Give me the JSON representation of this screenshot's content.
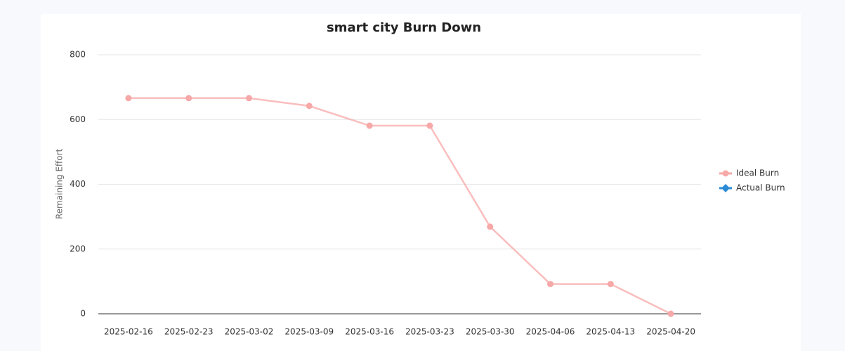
{
  "chart_data": {
    "type": "line",
    "title": "smart city Burn Down",
    "ylabel": "Remaining Effort",
    "categories": [
      "2025-02-16",
      "2025-02-23",
      "2025-03-02",
      "2025-03-09",
      "2025-03-16",
      "2025-03-23",
      "2025-03-30",
      "2025-04-06",
      "2025-04-13",
      "2025-04-20"
    ],
    "series": [
      {
        "name": "Ideal Burn",
        "color": "#f7a8a8",
        "values": [
          666,
          666,
          666,
          642,
          581,
          581,
          269,
          92,
          92,
          0
        ]
      },
      {
        "name": "Actual Burn",
        "color": "#2b8ad6",
        "values": [
          null,
          null,
          null,
          null,
          null,
          null,
          null,
          null,
          null,
          null
        ]
      }
    ],
    "ylim": [
      0,
      800
    ],
    "yticks": [
      0,
      200,
      400,
      600,
      800
    ],
    "grid": true,
    "legend": "right"
  }
}
